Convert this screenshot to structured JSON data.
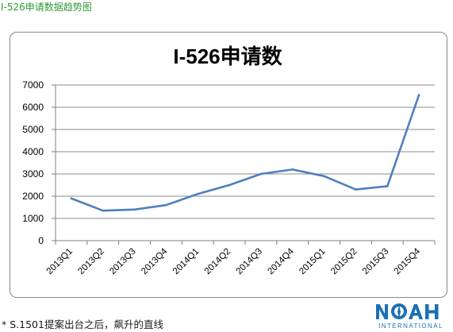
{
  "page": {
    "caption": "I-526申请数据趋势图",
    "footnote": "* S.1501提案出台之后，飙升的直线",
    "logo": {
      "name": "NOAH",
      "subtitle": "INTERNATIONAL"
    }
  },
  "chart_data": {
    "type": "line",
    "title": "I-526申请数",
    "xlabel": "",
    "ylabel": "",
    "categories": [
      "2013Q1",
      "2013Q2",
      "2013Q3",
      "2013Q4",
      "2014Q1",
      "2014Q2",
      "2014Q3",
      "2014Q4",
      "2015Q1",
      "2015Q2",
      "2015Q3",
      "2015Q4"
    ],
    "series": [
      {
        "values": [
          1900,
          1350,
          1400,
          1600,
          2100,
          2500,
          3000,
          3200,
          2900,
          2300,
          2450,
          6550
        ]
      }
    ],
    "ylim": [
      0,
      7000
    ],
    "yticks": [
      "0",
      "1000",
      "2000",
      "3000",
      "4000",
      "5000",
      "6000",
      "7000"
    ],
    "grid": true,
    "legend": "none",
    "line_color": "#4f7fbd",
    "grid_color": "#8c8c8c"
  }
}
